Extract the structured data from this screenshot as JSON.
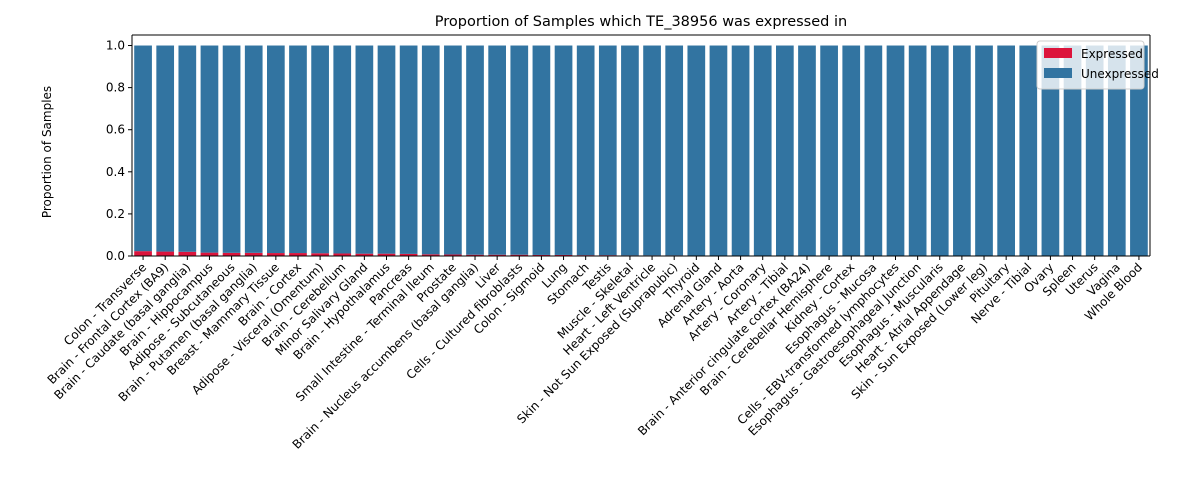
{
  "chart_data": {
    "type": "bar",
    "stacked": true,
    "title": "Proportion of Samples which TE_38956 was expressed in",
    "xlabel": "",
    "ylabel": "Proportion of Samples",
    "ylim": [
      0,
      1.05
    ],
    "yticks": [
      0.0,
      0.2,
      0.4,
      0.6,
      0.8,
      1.0
    ],
    "ytick_labels": [
      "0.0",
      "0.2",
      "0.4",
      "0.6",
      "0.8",
      "1.0"
    ],
    "grid": false,
    "legend_position": "top-right",
    "categories": [
      "Colon - Transverse",
      "Brain - Frontal Cortex (BA9)",
      "Brain - Caudate (basal ganglia)",
      "Brain - Hippocampus",
      "Adipose - Subcutaneous",
      "Brain - Putamen (basal ganglia)",
      "Breast - Mammary Tissue",
      "Brain - Cortex",
      "Adipose - Visceral (Omentum)",
      "Brain - Cerebellum",
      "Minor Salivary Gland",
      "Brain - Hypothalamus",
      "Pancreas",
      "Small Intestine - Terminal Ileum",
      "Prostate",
      "Brain - Nucleus accumbens (basal ganglia)",
      "Liver",
      "Cells - Cultured fibroblasts",
      "Colon - Sigmoid",
      "Lung",
      "Stomach",
      "Testis",
      "Muscle - Skeletal",
      "Heart - Left Ventricle",
      "Skin - Not Sun Exposed (Suprapubic)",
      "Thyroid",
      "Adrenal Gland",
      "Artery - Aorta",
      "Artery - Coronary",
      "Artery - Tibial",
      "Brain - Anterior cingulate cortex (BA24)",
      "Brain - Cerebellar Hemisphere",
      "Kidney - Cortex",
      "Esophagus - Mucosa",
      "Cells - EBV-transformed lymphocytes",
      "Esophagus - Gastroesophageal Junction",
      "Esophagus - Muscularis",
      "Heart - Atrial Appendage",
      "Skin - Sun Exposed (Lower leg)",
      "Pituitary",
      "Nerve - Tibial",
      "Ovary",
      "Spleen",
      "Uterus",
      "Vagina",
      "Whole Blood"
    ],
    "series": [
      {
        "name": "Expressed",
        "color": "#dc143c",
        "values": [
          0.023,
          0.021,
          0.02,
          0.016,
          0.015,
          0.015,
          0.014,
          0.014,
          0.013,
          0.012,
          0.011,
          0.011,
          0.01,
          0.008,
          0.007,
          0.006,
          0.006,
          0.006,
          0.005,
          0.005,
          0.004,
          0.004,
          0.003,
          0.003,
          0.003,
          0,
          0,
          0,
          0,
          0,
          0,
          0,
          0,
          0,
          0,
          0,
          0,
          0,
          0,
          0,
          0,
          0,
          0,
          0,
          0,
          0
        ]
      },
      {
        "name": "Unexpressed",
        "color": "#3274a1",
        "values": [
          0.977,
          0.979,
          0.98,
          0.984,
          0.985,
          0.985,
          0.986,
          0.986,
          0.987,
          0.988,
          0.989,
          0.989,
          0.99,
          0.992,
          0.993,
          0.994,
          0.994,
          0.994,
          0.995,
          0.995,
          0.996,
          0.996,
          0.997,
          0.997,
          0.997,
          1,
          1,
          1,
          1,
          1,
          1,
          1,
          1,
          1,
          1,
          1,
          1,
          1,
          1,
          1,
          1,
          1,
          1,
          1,
          1,
          1
        ]
      }
    ]
  }
}
